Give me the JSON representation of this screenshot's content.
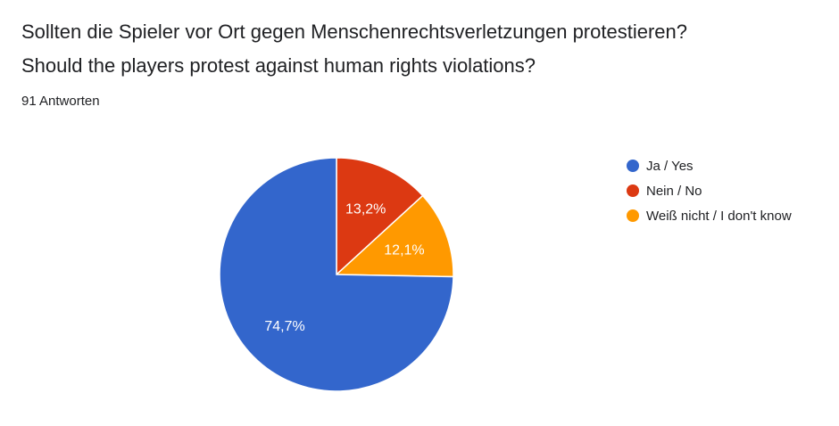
{
  "header": {
    "title_de": "Sollten die Spieler vor Ort gegen Menschenrechtsverletzungen protestieren?",
    "title_en": "Should the players protest against human rights violations?",
    "responses": "91 Antworten"
  },
  "chart_data": {
    "type": "pie",
    "total_responses": 91,
    "slices": [
      {
        "label": "Ja / Yes",
        "value": 74.7,
        "display": "74,7%",
        "color": "#3366cc"
      },
      {
        "label": "Nein / No",
        "value": 13.2,
        "display": "13,2%",
        "color": "#dc3912"
      },
      {
        "label": "Weiß nicht / I don't know",
        "value": 12.1,
        "display": "12,1%",
        "color": "#ff9900"
      }
    ],
    "legend_position": "right",
    "start_angle": "12 o'clock",
    "direction": "clockwise"
  }
}
